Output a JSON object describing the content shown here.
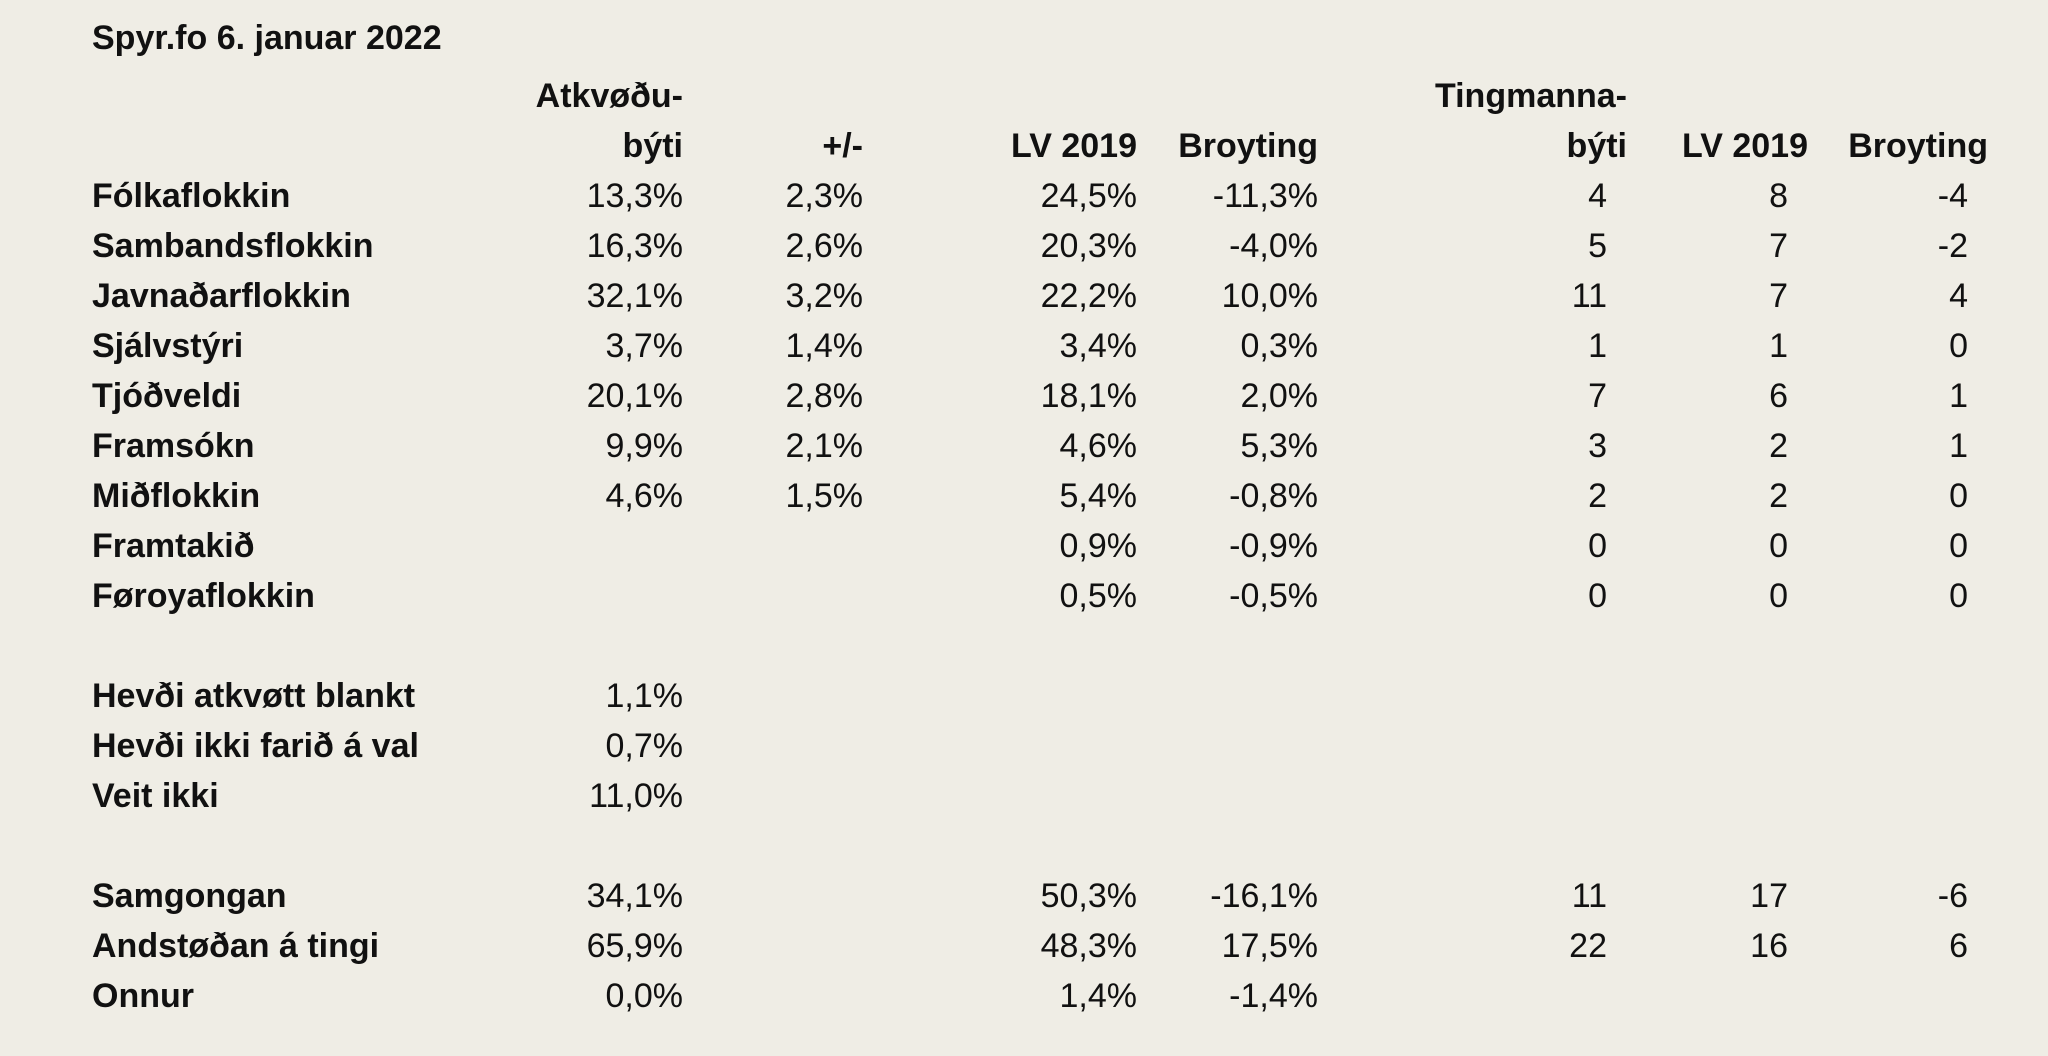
{
  "title": "Spyr.fo 6. januar 2022",
  "headers": {
    "votes_line1": "Atkvøðu-",
    "votes_line2": "býti",
    "change": "+/-",
    "lv2019": "LV 2019",
    "broyting": "Broyting",
    "seats_line1": "Tingmanna-",
    "seats_line2": "býti",
    "seats_lv2019": "LV 2019",
    "seats_broyting": "Broyting"
  },
  "parties": [
    {
      "name": "Fólkaflokkin",
      "votes": "13,3%",
      "margin": "2,3%",
      "lv2019": "24,5%",
      "change": "-11,3%",
      "seats": "4",
      "seats_lv2019": "8",
      "seats_change": "-4"
    },
    {
      "name": "Sambandsflokkin",
      "votes": "16,3%",
      "margin": "2,6%",
      "lv2019": "20,3%",
      "change": "-4,0%",
      "seats": "5",
      "seats_lv2019": "7",
      "seats_change": "-2"
    },
    {
      "name": "Javnaðarflokkin",
      "votes": "32,1%",
      "margin": "3,2%",
      "lv2019": "22,2%",
      "change": "10,0%",
      "seats": "11",
      "seats_lv2019": "7",
      "seats_change": "4"
    },
    {
      "name": "Sjálvstýri",
      "votes": "3,7%",
      "margin": "1,4%",
      "lv2019": "3,4%",
      "change": "0,3%",
      "seats": "1",
      "seats_lv2019": "1",
      "seats_change": "0"
    },
    {
      "name": "Tjóðveldi",
      "votes": "20,1%",
      "margin": "2,8%",
      "lv2019": "18,1%",
      "change": "2,0%",
      "seats": "7",
      "seats_lv2019": "6",
      "seats_change": "1"
    },
    {
      "name": "Framsókn",
      "votes": "9,9%",
      "margin": "2,1%",
      "lv2019": "4,6%",
      "change": "5,3%",
      "seats": "3",
      "seats_lv2019": "2",
      "seats_change": "1"
    },
    {
      "name": "Miðflokkin",
      "votes": "4,6%",
      "margin": "1,5%",
      "lv2019": "5,4%",
      "change": "-0,8%",
      "seats": "2",
      "seats_lv2019": "2",
      "seats_change": "0"
    },
    {
      "name": "Framtakið",
      "votes": "",
      "margin": "",
      "lv2019": "0,9%",
      "change": "-0,9%",
      "seats": "0",
      "seats_lv2019": "0",
      "seats_change": "0"
    },
    {
      "name": "Føroyaflokkin",
      "votes": "",
      "margin": "",
      "lv2019": "0,5%",
      "change": "-0,5%",
      "seats": "0",
      "seats_lv2019": "0",
      "seats_change": "0"
    }
  ],
  "other_answers": [
    {
      "name": "Hevði atkvøtt blankt",
      "value": "1,1%"
    },
    {
      "name": "Hevði ikki farið á val",
      "value": "0,7%"
    },
    {
      "name": "Veit ikki",
      "value": "11,0%"
    }
  ],
  "blocs": [
    {
      "name": "Samgongan",
      "votes": "34,1%",
      "lv2019": "50,3%",
      "change": "-16,1%",
      "seats": "11",
      "seats_lv2019": "17",
      "seats_change": "-6"
    },
    {
      "name": "Andstøðan á tingi",
      "votes": "65,9%",
      "lv2019": "48,3%",
      "change": "17,5%",
      "seats": "22",
      "seats_lv2019": "16",
      "seats_change": "6"
    },
    {
      "name": "Onnur",
      "votes": "0,0%",
      "lv2019": "1,4%",
      "change": "-1,4%",
      "seats": "",
      "seats_lv2019": "",
      "seats_change": ""
    }
  ]
}
